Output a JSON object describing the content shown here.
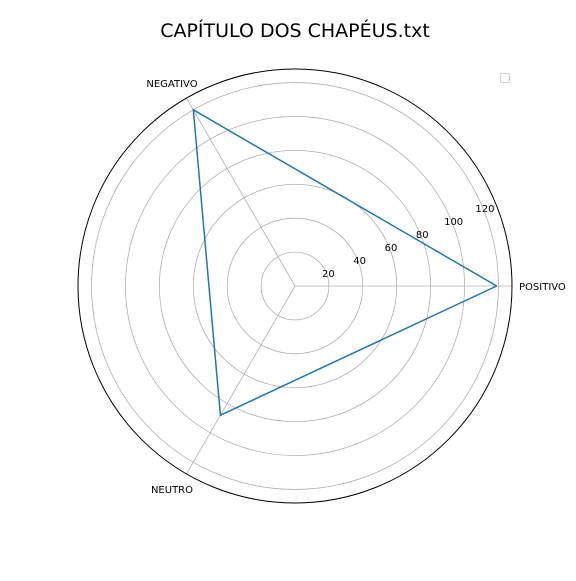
{
  "chart_data": {
    "type": "radar",
    "title": "CAPÍTULO DOS CHAPÉUS.txt",
    "categories": [
      "POSITIVO",
      "NEGATIVO",
      "NEUTRO"
    ],
    "series": [
      {
        "values": [
          119,
          120,
          88
        ],
        "color": "#1f77b4"
      }
    ],
    "rlim": [
      0,
      128
    ],
    "r_ticks": [
      20,
      40,
      60,
      80,
      100,
      120
    ],
    "grid": true,
    "legend": "top-right",
    "colors": {
      "grid": "#b0b0b0",
      "frame": "#000000",
      "series": "#1f77b4"
    }
  }
}
